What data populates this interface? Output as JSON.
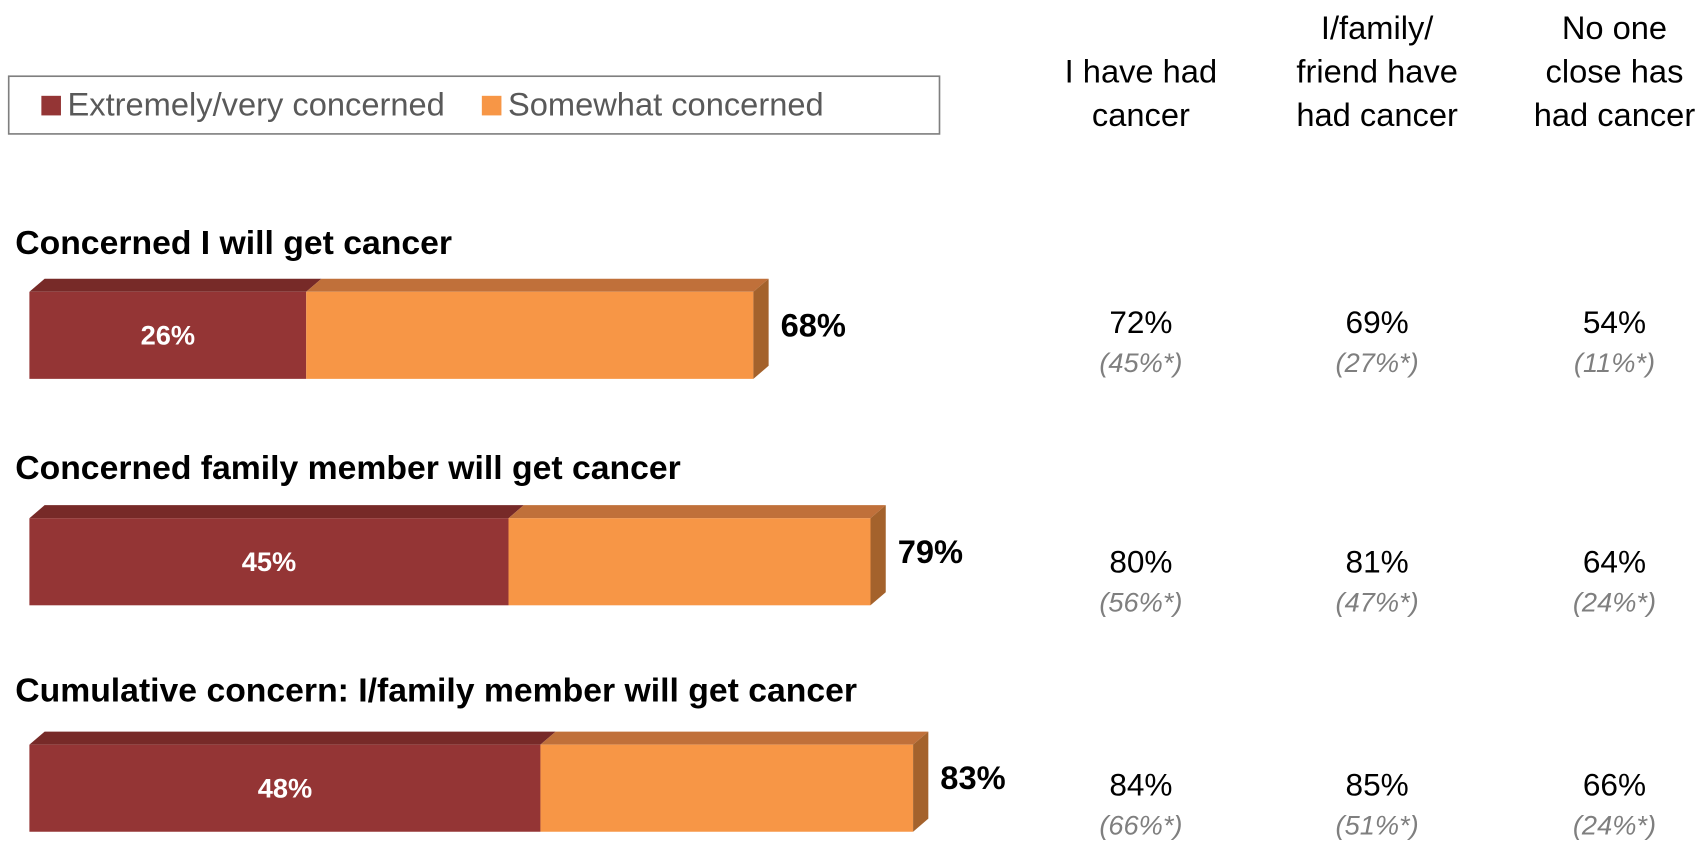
{
  "chart_data": {
    "type": "stacked-bar-3d",
    "categories": [
      "Concerned I will get cancer",
      "Concerned family member will get cancer",
      "Cumulative concern:  I/family member will get cancer"
    ],
    "series": [
      {
        "name": "Extremely/very concerned",
        "color": "#943535",
        "top_color": "#772a28",
        "values": [
          26,
          45,
          48
        ],
        "value_labels": [
          "26%",
          "45%",
          "48%"
        ]
      },
      {
        "name": "Somewhat concerned",
        "color": "#f79646",
        "top_color": "#c0703a",
        "values": [
          42,
          34,
          35
        ]
      }
    ],
    "totals": [
      68,
      79,
      83
    ],
    "total_labels": [
      "68%",
      "79%",
      "83%"
    ],
    "side_color": "#a4622c",
    "xlim": [
      0,
      100
    ]
  },
  "table": {
    "columns": [
      [
        "I have had",
        "cancer"
      ],
      [
        "I/family/",
        "friend have",
        "had cancer"
      ],
      [
        "No one",
        "close has",
        "had cancer"
      ]
    ],
    "rows": [
      [
        {
          "main": "72%",
          "sub": "(45%*)"
        },
        {
          "main": "69%",
          "sub": "(27%*)"
        },
        {
          "main": "54%",
          "sub": "(11%*)"
        }
      ],
      [
        {
          "main": "80%",
          "sub": "(56%*)"
        },
        {
          "main": "81%",
          "sub": "(47%*)"
        },
        {
          "main": "64%",
          "sub": "(24%*)"
        }
      ],
      [
        {
          "main": "84%",
          "sub": "(66%*)"
        },
        {
          "main": "85%",
          "sub": "(51%*)"
        },
        {
          "main": "66%",
          "sub": "(24%*)"
        }
      ]
    ]
  }
}
